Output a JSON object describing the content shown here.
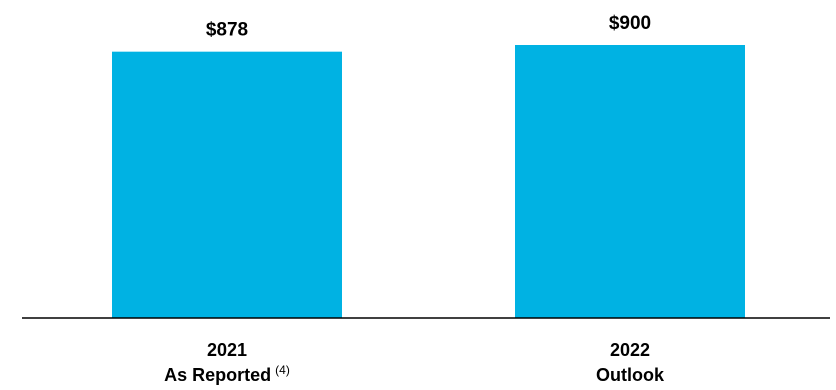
{
  "chart_data": {
    "type": "bar",
    "categories": [
      {
        "line1": "2021",
        "line2": "As Reported",
        "superscript": "(4)"
      },
      {
        "line1": "2022",
        "line2": "Outlook",
        "superscript": ""
      }
    ],
    "values": [
      878,
      900
    ],
    "data_labels": [
      "$878",
      "$900"
    ],
    "title": "",
    "xlabel": "",
    "ylabel": "",
    "ylim": [
      0,
      900
    ],
    "grid": false,
    "legend": "none",
    "colors": {
      "bar": "#00B2E3",
      "axis": "#000000",
      "text": "#000000"
    }
  }
}
